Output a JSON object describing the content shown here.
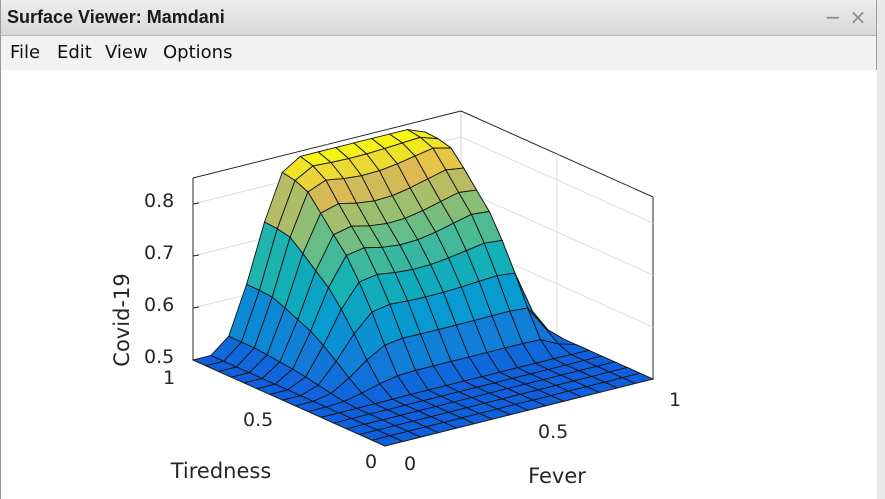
{
  "window": {
    "title": "Surface Viewer: Mamdani",
    "minimize_glyph": "−",
    "close_glyph": "×"
  },
  "menu": [
    "File",
    "Edit",
    "View",
    "Options"
  ],
  "chart_data": {
    "type": "surface",
    "colormap": "parula",
    "zlabel": "Covid-19",
    "xlabel": "Fever",
    "ylabel": "Tiredness",
    "xticks": [
      "0",
      "0.5",
      "1"
    ],
    "yticks": [
      "0",
      "0.5",
      "1"
    ],
    "zticks": [
      "0.5",
      "0.6",
      "0.7",
      "0.8"
    ],
    "xlim": [
      0,
      1
    ],
    "ylim": [
      0,
      1
    ],
    "zlim": [
      0.5,
      0.85
    ],
    "grid": true,
    "grid_size": [
      15,
      15
    ],
    "z_plateau_high": 0.84,
    "z_plateau_mid": 0.72,
    "z_base": 0.5
  }
}
